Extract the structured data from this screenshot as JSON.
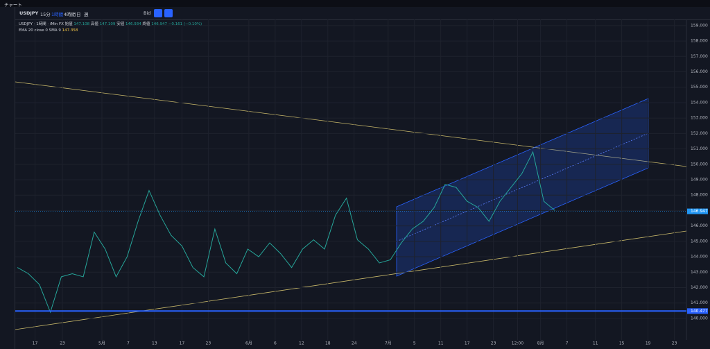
{
  "window": {
    "title": "チャート"
  },
  "toolbar": {
    "symbol": "USDJPY",
    "intervals": [
      "15分",
      "1時間",
      "4時間",
      "日",
      "週"
    ],
    "active_interval": "1時間",
    "price_side": "Bid"
  },
  "legend": {
    "symbol": "USDJPY",
    "interval": "1時間",
    "source": "iMin FX",
    "open_label": "始値",
    "open": "147.108",
    "high_label": "高値",
    "high": "147.109",
    "low_label": "安値",
    "low": "146.934",
    "close_label": "終値",
    "close": "146.947",
    "change": "−0.161 (−0.10%)",
    "indicator": "EMA 20 close 0 SMA 9",
    "indicator_value": "147.358"
  },
  "chart_data": {
    "type": "line",
    "x": [
      0,
      1,
      2,
      3,
      4,
      5,
      6,
      7,
      8,
      9,
      10,
      11,
      12,
      13,
      14,
      15,
      16,
      17,
      18,
      19,
      20,
      21,
      22,
      23,
      24,
      25,
      26,
      27,
      28,
      29,
      30,
      31,
      32,
      33,
      34,
      35,
      36,
      37,
      38,
      39,
      40,
      41,
      42,
      43,
      44,
      45,
      46,
      47,
      48,
      49
    ],
    "series": [
      {
        "name": "USDJPY",
        "color": "#26a69a",
        "values": [
          143.3,
          142.9,
          142.2,
          140.4,
          142.7,
          142.9,
          142.7,
          145.6,
          144.5,
          142.7,
          144.0,
          146.3,
          148.3,
          146.7,
          145.4,
          144.7,
          143.3,
          142.7,
          145.8,
          143.6,
          142.9,
          144.5,
          144.0,
          144.9,
          144.2,
          143.3,
          144.5,
          145.1,
          144.5,
          146.7,
          147.8,
          145.1,
          144.5,
          143.6,
          143.8,
          144.9,
          145.8,
          146.3,
          147.2,
          148.7,
          148.5,
          147.6,
          147.2,
          146.3,
          147.6,
          148.5,
          149.4,
          150.8,
          147.6,
          147.0
        ]
      }
    ],
    "xlim": [
      -0.2,
      61
    ],
    "xticks": [
      {
        "value": 1.6,
        "label": "17"
      },
      {
        "value": 4.1,
        "label": "23"
      },
      {
        "value": 7.7,
        "label": "5月"
      },
      {
        "value": 10.1,
        "label": "7"
      },
      {
        "value": 12.5,
        "label": "13"
      },
      {
        "value": 15.0,
        "label": "17"
      },
      {
        "value": 17.4,
        "label": "23"
      },
      {
        "value": 21.1,
        "label": "6月"
      },
      {
        "value": 23.5,
        "label": "6"
      },
      {
        "value": 25.9,
        "label": "12"
      },
      {
        "value": 28.3,
        "label": "18"
      },
      {
        "value": 30.7,
        "label": "24"
      },
      {
        "value": 33.8,
        "label": "7月"
      },
      {
        "value": 36.2,
        "label": "5"
      },
      {
        "value": 38.6,
        "label": "11"
      },
      {
        "value": 41.0,
        "label": "17"
      },
      {
        "value": 43.4,
        "label": "23"
      },
      {
        "value": 45.6,
        "label": "12:00"
      },
      {
        "value": 47.7,
        "label": "8月"
      },
      {
        "value": 50.1,
        "label": "7"
      },
      {
        "value": 52.7,
        "label": "11"
      },
      {
        "value": 55.1,
        "label": "15"
      },
      {
        "value": 57.5,
        "label": "19"
      },
      {
        "value": 59.9,
        "label": "23"
      }
    ],
    "ylim": [
      138.6,
      159.4
    ],
    "yticks": [
      {
        "value": 140,
        "label": "140.000"
      },
      {
        "value": 141,
        "label": "141.000"
      },
      {
        "value": 142,
        "label": "142.000"
      },
      {
        "value": 143,
        "label": "143.000"
      },
      {
        "value": 144,
        "label": "144.000"
      },
      {
        "value": 145,
        "label": "145.000"
      },
      {
        "value": 146,
        "label": "146.000"
      },
      {
        "value": 147,
        "label": "147.000"
      },
      {
        "value": 148,
        "label": "148.000"
      },
      {
        "value": 149,
        "label": "149.000"
      },
      {
        "value": 150,
        "label": "150.000"
      },
      {
        "value": 151,
        "label": "151.000"
      },
      {
        "value": 152,
        "label": "152.000"
      },
      {
        "value": 153,
        "label": "153.000"
      },
      {
        "value": 154,
        "label": "154.000"
      },
      {
        "value": 155,
        "label": "155.000"
      },
      {
        "value": 156,
        "label": "156.000"
      },
      {
        "value": 157,
        "label": "157.000"
      },
      {
        "value": 158,
        "label": "158.000"
      },
      {
        "value": 159,
        "label": "159.000"
      }
    ],
    "grid": true,
    "last_price": 146.947,
    "last_price_color": "#2196f3",
    "horizontal_line": 140.477,
    "horizontal_line_color": "#2962ff"
  }
}
